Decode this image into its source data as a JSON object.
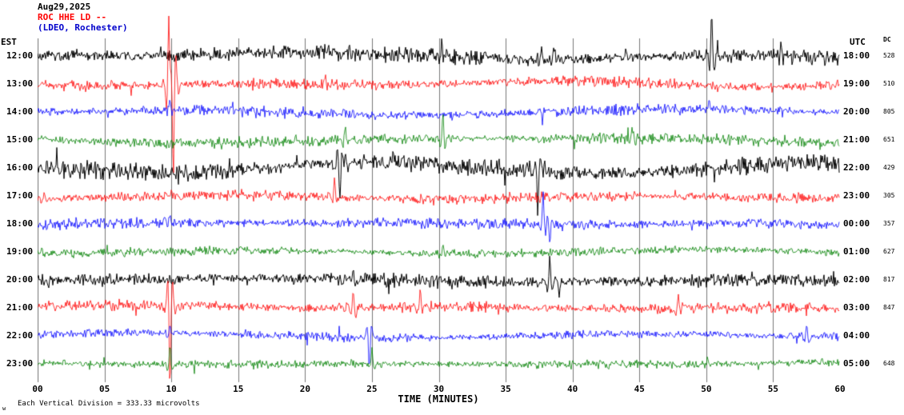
{
  "header": {
    "date": "Aug29,2025",
    "station": "ROC HHE LD --",
    "location": "(LDEO, Rochester)",
    "date_color": "#000000",
    "station_color": "#ff0000",
    "location_color": "#0000cc"
  },
  "axes": {
    "left_label": "EST",
    "right_label": "UTC",
    "far_right_label": "DC",
    "xlabel": "TIME (MINUTES)",
    "x_ticks": [
      "00",
      "05",
      "10",
      "15",
      "20",
      "25",
      "30",
      "35",
      "40",
      "45",
      "50",
      "55",
      "60"
    ]
  },
  "footer": {
    "note": "Each Vertical Division =  333.33 microvolts",
    "corner_mark": "w"
  },
  "chart_data": {
    "type": "line",
    "subtype": "seismogram-helicorder",
    "title": "ROC HHE LD -- (LDEO, Rochester) Aug29,2025",
    "xlabel": "TIME (MINUTES)",
    "x_range_minutes": [
      0,
      60
    ],
    "x_tick_interval_minutes": 5,
    "vertical_division_microvolts": 333.33,
    "grid_color": "#777777",
    "trace_color_cycle": [
      "#000000",
      "#ff0000",
      "#0000ff",
      "#008000"
    ],
    "rows": [
      {
        "est": "12:00",
        "utc": "18:00",
        "dc": "528",
        "color": "#000000",
        "amp": 7,
        "spikes": [
          {
            "min": 30.2,
            "amp": 16
          },
          {
            "min": 37.7,
            "amp": 22
          },
          {
            "min": 38.6,
            "amp": 18
          },
          {
            "min": 44.0,
            "amp": 12
          },
          {
            "min": 50.4,
            "amp": 60
          },
          {
            "min": 55.6,
            "amp": 14
          }
        ]
      },
      {
        "est": "13:00",
        "utc": "19:00",
        "dc": "510",
        "color": "#ff0000",
        "amp": 5,
        "spikes": [
          {
            "min": 9.8,
            "amp": 100
          },
          {
            "min": 10.15,
            "amp": -140
          },
          {
            "min": 21.5,
            "amp": 10
          }
        ]
      },
      {
        "est": "14:00",
        "utc": "20:00",
        "dc": "805",
        "color": "#0000ff",
        "amp": 5,
        "spikes": [
          {
            "min": 9.9,
            "amp": 14
          },
          {
            "min": 50.2,
            "amp": 10
          }
        ]
      },
      {
        "est": "15:00",
        "utc": "21:00",
        "dc": "651",
        "color": "#008000",
        "amp": 5,
        "spikes": [
          {
            "min": 23.0,
            "amp": 22
          },
          {
            "min": 30.3,
            "amp": 38
          },
          {
            "min": 44.5,
            "amp": 14
          },
          {
            "min": 47.0,
            "amp": 12
          }
        ]
      },
      {
        "est": "16:00",
        "utc": "22:00",
        "dc": "429",
        "color": "#000000",
        "amp": 8,
        "spikes": [
          {
            "min": 22.6,
            "amp": -55
          },
          {
            "min": 23.0,
            "amp": 20
          },
          {
            "min": 37.4,
            "amp": -65
          },
          {
            "min": 37.9,
            "amp": 15
          }
        ]
      },
      {
        "est": "17:00",
        "utc": "23:00",
        "dc": "305",
        "color": "#ff0000",
        "amp": 5,
        "spikes": [
          {
            "min": 22.2,
            "amp": 26
          },
          {
            "min": 0.5,
            "amp": 12
          }
        ]
      },
      {
        "est": "18:00",
        "utc": "00:00",
        "dc": "357",
        "color": "#0000ff",
        "amp": 5,
        "spikes": [
          {
            "min": 37.8,
            "amp": 42
          },
          {
            "min": 38.3,
            "amp": -30
          },
          {
            "min": 9.9,
            "amp": 10
          }
        ]
      },
      {
        "est": "19:00",
        "utc": "01:00",
        "dc": "627",
        "color": "#008000",
        "amp": 4,
        "spikes": [
          {
            "min": 30.3,
            "amp": 16
          },
          {
            "min": 0.3,
            "amp": 10
          }
        ]
      },
      {
        "est": "20:00",
        "utc": "02:00",
        "dc": "817",
        "color": "#000000",
        "amp": 6,
        "spikes": [
          {
            "min": 38.3,
            "amp": 34
          },
          {
            "min": 39.0,
            "amp": -22
          },
          {
            "min": 23.6,
            "amp": 12
          }
        ]
      },
      {
        "est": "21:00",
        "utc": "03:00",
        "dc": "847",
        "color": "#ff0000",
        "amp": 5,
        "spikes": [
          {
            "min": 9.9,
            "amp": -115
          },
          {
            "min": 23.6,
            "amp": 24
          },
          {
            "min": 28.6,
            "amp": 22
          },
          {
            "min": 47.9,
            "amp": 16
          }
        ]
      },
      {
        "est": "22:00",
        "utc": "04:00",
        "dc": "",
        "color": "#0000ff",
        "amp": 4,
        "spikes": [
          {
            "min": 24.8,
            "amp": -48
          },
          {
            "min": 9.9,
            "amp": 12
          },
          {
            "min": 57.5,
            "amp": 14
          }
        ]
      },
      {
        "est": "23:00",
        "utc": "05:00",
        "dc": "648",
        "color": "#008000",
        "amp": 4,
        "spikes": [
          {
            "min": 9.9,
            "amp": 22
          },
          {
            "min": 25.0,
            "amp": 18
          },
          {
            "min": 50.1,
            "amp": 12
          }
        ]
      }
    ]
  }
}
